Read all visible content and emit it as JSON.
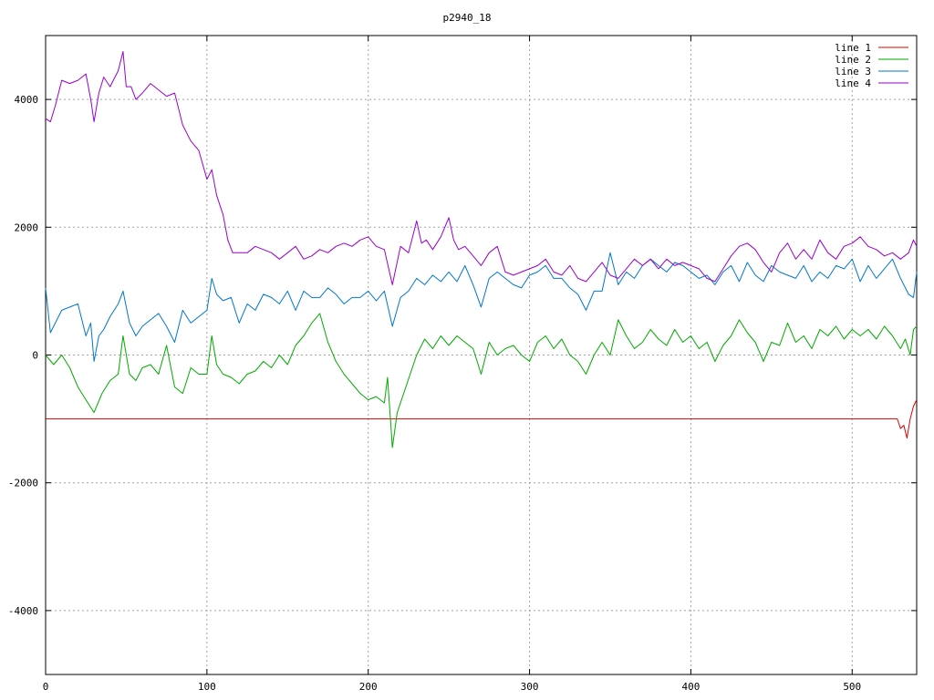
{
  "chart_data": {
    "type": "line",
    "title": "p2940_18",
    "xlabel": "",
    "ylabel": "",
    "xlim": [
      0,
      540
    ],
    "ylim": [
      -5000,
      5000
    ],
    "x_ticks": [
      0,
      100,
      200,
      300,
      400,
      500
    ],
    "y_ticks": [
      -4000,
      -2000,
      0,
      2000,
      4000
    ],
    "x_tick_labels": [
      "0",
      "100",
      "200",
      "300",
      "400",
      "500"
    ],
    "y_tick_labels": [
      "-4000",
      "-2000",
      "0",
      "2000",
      "4000"
    ],
    "grid": true,
    "legend_position": "top-right",
    "series": [
      {
        "name": "line 1",
        "color": "#dd0000",
        "x": [
          0,
          100,
          200,
          300,
          400,
          500,
          528,
          530,
          532,
          534,
          536,
          538,
          540
        ],
        "y": [
          -1000,
          -1000,
          -1000,
          -1000,
          -1000,
          -1000,
          -1000,
          -1150,
          -1100,
          -1300,
          -1000,
          -800,
          -700
        ]
      },
      {
        "name": "line 2",
        "color": "#00aa00",
        "x": [
          0,
          5,
          10,
          15,
          20,
          25,
          30,
          35,
          40,
          45,
          48,
          52,
          56,
          60,
          65,
          70,
          75,
          80,
          85,
          90,
          95,
          100,
          103,
          106,
          110,
          115,
          120,
          125,
          130,
          135,
          140,
          145,
          150,
          155,
          160,
          165,
          170,
          175,
          180,
          185,
          190,
          195,
          200,
          205,
          210,
          212,
          215,
          218,
          222,
          226,
          230,
          235,
          240,
          245,
          250,
          255,
          260,
          265,
          270,
          275,
          280,
          285,
          290,
          295,
          300,
          305,
          310,
          315,
          320,
          325,
          330,
          335,
          340,
          345,
          350,
          355,
          360,
          365,
          370,
          375,
          380,
          385,
          390,
          395,
          400,
          405,
          410,
          415,
          420,
          425,
          430,
          435,
          440,
          445,
          450,
          455,
          460,
          465,
          470,
          475,
          480,
          485,
          490,
          495,
          500,
          505,
          510,
          515,
          520,
          525,
          530,
          533,
          536,
          538,
          540
        ],
        "y": [
          0,
          -150,
          0,
          -200,
          -500,
          -700,
          -900,
          -600,
          -400,
          -300,
          300,
          -300,
          -400,
          -200,
          -150,
          -300,
          150,
          -500,
          -600,
          -200,
          -300,
          -300,
          300,
          -150,
          -300,
          -350,
          -450,
          -300,
          -250,
          -100,
          -200,
          0,
          -150,
          150,
          300,
          500,
          650,
          200,
          -100,
          -300,
          -450,
          -600,
          -700,
          -650,
          -750,
          -350,
          -1450,
          -900,
          -600,
          -300,
          0,
          250,
          100,
          300,
          150,
          300,
          200,
          100,
          -300,
          200,
          0,
          100,
          150,
          0,
          -100,
          200,
          300,
          100,
          250,
          0,
          -100,
          -300,
          0,
          200,
          0,
          550,
          300,
          100,
          200,
          400,
          250,
          150,
          400,
          200,
          300,
          100,
          200,
          -100,
          150,
          300,
          550,
          350,
          200,
          -100,
          200,
          150,
          500,
          200,
          300,
          100,
          400,
          300,
          450,
          250,
          400,
          300,
          400,
          250,
          450,
          300,
          100,
          250,
          0,
          400,
          450
        ]
      },
      {
        "name": "line 3",
        "color": "#0077cc",
        "x": [
          0,
          3,
          6,
          10,
          15,
          20,
          25,
          28,
          30,
          33,
          36,
          40,
          45,
          48,
          52,
          56,
          60,
          65,
          70,
          75,
          80,
          85,
          90,
          95,
          100,
          103,
          106,
          110,
          115,
          120,
          125,
          130,
          135,
          140,
          145,
          150,
          155,
          160,
          165,
          170,
          175,
          180,
          185,
          190,
          195,
          200,
          205,
          210,
          215,
          220,
          225,
          230,
          235,
          240,
          245,
          250,
          255,
          260,
          265,
          270,
          275,
          280,
          285,
          290,
          295,
          300,
          305,
          310,
          315,
          320,
          325,
          330,
          335,
          340,
          345,
          350,
          355,
          360,
          365,
          370,
          375,
          380,
          385,
          390,
          395,
          400,
          405,
          410,
          415,
          420,
          425,
          430,
          435,
          440,
          445,
          450,
          455,
          460,
          465,
          470,
          475,
          480,
          485,
          490,
          495,
          500,
          505,
          510,
          515,
          520,
          525,
          530,
          535,
          538,
          540
        ],
        "y": [
          1050,
          350,
          500,
          700,
          750,
          800,
          300,
          500,
          -100,
          300,
          400,
          600,
          800,
          1000,
          500,
          300,
          450,
          550,
          650,
          450,
          200,
          700,
          500,
          600,
          700,
          1200,
          950,
          850,
          900,
          500,
          800,
          700,
          950,
          900,
          800,
          1000,
          700,
          1000,
          900,
          900,
          1050,
          950,
          800,
          900,
          900,
          1000,
          850,
          1000,
          450,
          900,
          1000,
          1200,
          1100,
          1250,
          1150,
          1300,
          1150,
          1400,
          1100,
          750,
          1200,
          1300,
          1200,
          1100,
          1050,
          1250,
          1300,
          1400,
          1200,
          1200,
          1050,
          950,
          700,
          1000,
          1000,
          1600,
          1100,
          1300,
          1200,
          1400,
          1500,
          1400,
          1300,
          1450,
          1400,
          1300,
          1200,
          1250,
          1100,
          1300,
          1400,
          1150,
          1450,
          1250,
          1150,
          1400,
          1300,
          1250,
          1200,
          1400,
          1150,
          1300,
          1200,
          1400,
          1350,
          1500,
          1150,
          1400,
          1200,
          1350,
          1500,
          1200,
          950,
          900,
          1300
        ]
      },
      {
        "name": "line 4",
        "color": "#9900cc",
        "x": [
          0,
          3,
          6,
          10,
          15,
          20,
          25,
          28,
          30,
          33,
          36,
          40,
          45,
          48,
          50,
          53,
          56,
          60,
          65,
          70,
          75,
          80,
          85,
          88,
          90,
          95,
          100,
          103,
          106,
          110,
          113,
          116,
          120,
          125,
          130,
          135,
          140,
          145,
          150,
          155,
          160,
          165,
          170,
          175,
          180,
          185,
          190,
          195,
          200,
          205,
          210,
          215,
          220,
          225,
          230,
          233,
          236,
          240,
          245,
          250,
          253,
          256,
          260,
          265,
          270,
          275,
          280,
          285,
          290,
          295,
          300,
          305,
          310,
          315,
          320,
          325,
          330,
          335,
          340,
          345,
          350,
          355,
          360,
          365,
          370,
          375,
          380,
          385,
          390,
          395,
          400,
          405,
          410,
          415,
          420,
          425,
          430,
          435,
          440,
          445,
          450,
          455,
          460,
          465,
          470,
          475,
          480,
          485,
          490,
          495,
          500,
          505,
          510,
          515,
          520,
          525,
          530,
          535,
          538,
          540
        ],
        "y": [
          3700,
          3650,
          3900,
          4300,
          4250,
          4300,
          4400,
          4000,
          3650,
          4100,
          4350,
          4200,
          4450,
          4750,
          4200,
          4200,
          4000,
          4100,
          4250,
          4150,
          4050,
          4100,
          3600,
          3450,
          3350,
          3200,
          2750,
          2900,
          2500,
          2200,
          1800,
          1600,
          1600,
          1600,
          1700,
          1650,
          1600,
          1500,
          1600,
          1700,
          1500,
          1550,
          1650,
          1600,
          1700,
          1750,
          1700,
          1800,
          1850,
          1700,
          1650,
          1100,
          1700,
          1600,
          2100,
          1750,
          1800,
          1650,
          1850,
          2150,
          1800,
          1650,
          1700,
          1550,
          1400,
          1600,
          1700,
          1300,
          1250,
          1300,
          1350,
          1400,
          1500,
          1300,
          1250,
          1400,
          1200,
          1150,
          1300,
          1450,
          1250,
          1200,
          1350,
          1500,
          1400,
          1500,
          1350,
          1500,
          1400,
          1450,
          1400,
          1350,
          1200,
          1150,
          1350,
          1550,
          1700,
          1750,
          1650,
          1450,
          1300,
          1600,
          1750,
          1500,
          1650,
          1500,
          1800,
          1600,
          1500,
          1700,
          1750,
          1850,
          1700,
          1650,
          1550,
          1600,
          1500,
          1600,
          1800,
          1700
        ]
      }
    ]
  }
}
